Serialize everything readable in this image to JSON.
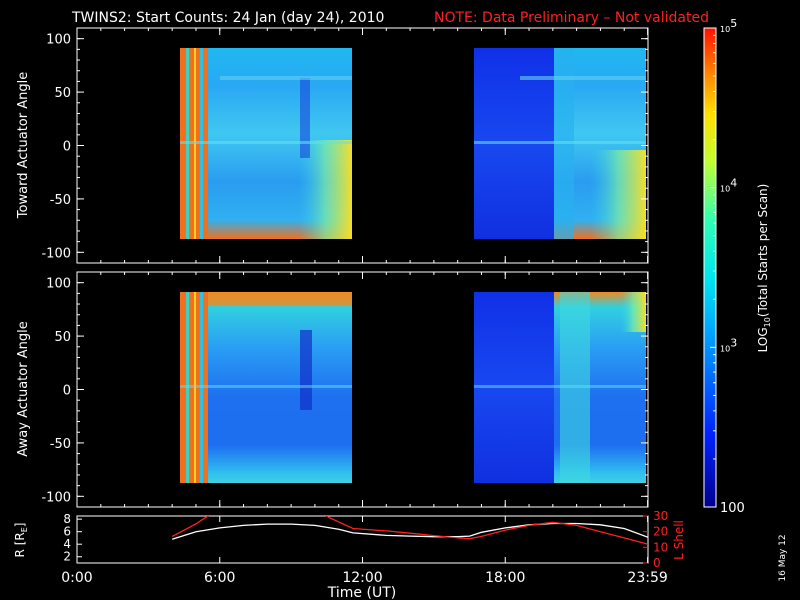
{
  "title": {
    "main": "TWINS2: Start Counts: 24 Jan (day  24), 2010",
    "note": "NOTE: Data Preliminary – Not validated",
    "note_color": "#ff2020"
  },
  "stamp": "16 May 12",
  "chart_data": [
    {
      "type": "heatmap",
      "panel": "toward",
      "ylabel": "Toward Actuator Angle",
      "ylim": [
        -110,
        110
      ],
      "yticks": [
        -100,
        -50,
        0,
        50,
        100
      ],
      "data_y_range": [
        -90,
        90
      ],
      "x_unit": "hours UT",
      "xlim": [
        0,
        24
      ],
      "data_intervals": [
        [
          3.9,
          11.6
        ],
        [
          16.5,
          24.0
        ]
      ],
      "description_of_values": "log10 start counts per scan; mostly ~10^3 (cyan/blue), high ~10^5 (red) near 4-5 UT and at edges"
    },
    {
      "type": "heatmap",
      "panel": "away",
      "ylabel": "Away Actuator Angle",
      "ylim": [
        -110,
        110
      ],
      "yticks": [
        -100,
        -50,
        0,
        50,
        100
      ],
      "data_y_range": [
        -90,
        90
      ],
      "x_unit": "hours UT",
      "xlim": [
        0,
        24
      ],
      "data_intervals": [
        [
          3.9,
          11.6
        ],
        [
          16.5,
          24.0
        ]
      ]
    },
    {
      "type": "line",
      "panel": "orbit",
      "ylabel": "R [R",
      "ylabel_sub": "E",
      "ylabel_end": "]",
      "ylim": [
        1,
        8.5
      ],
      "yticks": [
        2,
        4,
        6,
        8
      ],
      "y2label": "L Shell",
      "y2lim": [
        0,
        30
      ],
      "y2ticks": [
        0,
        10,
        20,
        30
      ],
      "xlim": [
        0,
        24
      ],
      "xticks": [
        0,
        6,
        12,
        18,
        23.983
      ],
      "xticklabels": [
        "0:00",
        "6:00",
        "12:00",
        "18:00",
        "23:59"
      ],
      "xlabel": "Time (UT)",
      "series": [
        {
          "color": "#ffffff",
          "axis": "left",
          "x": [
            4.0,
            5.0,
            6.0,
            7.0,
            8.0,
            9.0,
            10.0,
            11.0,
            11.6,
            13.0,
            14.0,
            15.0,
            16.0,
            16.5,
            17.0,
            18.0,
            19.0,
            20.0,
            21.0,
            22.0,
            23.0,
            24.0
          ],
          "y": [
            4.8,
            6.0,
            6.6,
            7.0,
            7.2,
            7.2,
            7.0,
            6.4,
            5.8,
            5.4,
            5.3,
            5.2,
            5.2,
            5.3,
            5.9,
            6.6,
            7.1,
            7.3,
            7.3,
            7.1,
            6.5,
            5.1
          ]
        },
        {
          "color": "#ff2020",
          "axis": "right",
          "x": [
            4.0,
            5.0,
            5.5,
            5.6,
            null,
            10.4,
            10.6,
            11.6,
            13.0,
            14.0,
            15.0,
            16.0,
            16.5,
            17.0,
            18.0,
            19.0,
            20.0,
            21.0,
            22.0,
            23.0,
            24.0
          ],
          "y": [
            17,
            25,
            30,
            31,
            null,
            31,
            29,
            22,
            20.5,
            19,
            17.5,
            16,
            15.5,
            17,
            21,
            24,
            26,
            24,
            20,
            16,
            12
          ]
        }
      ]
    },
    {
      "type": "colorbar",
      "label": "LOG",
      "label_sub": "10",
      "label_end": "(Total Starts per Scan)",
      "scale": "log",
      "range": [
        100,
        100000
      ],
      "ticks": [
        {
          "value": 100000,
          "base": "10",
          "exp": "5"
        },
        {
          "value": 10000,
          "base": "10",
          "exp": "4"
        },
        {
          "value": 1000,
          "base": "10",
          "exp": "3"
        },
        {
          "value": 100,
          "base": "100",
          "exp": ""
        }
      ]
    }
  ]
}
